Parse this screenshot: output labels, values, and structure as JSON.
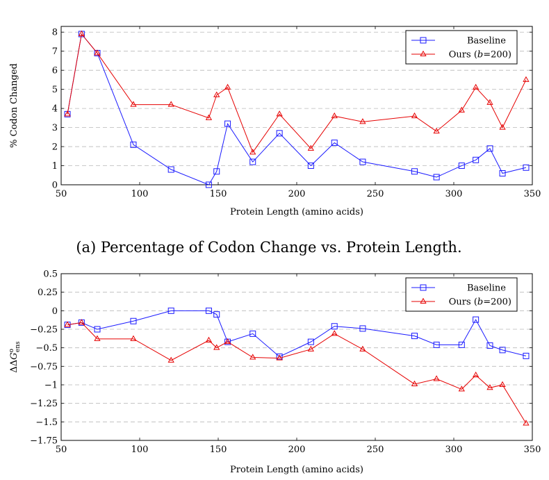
{
  "colors": {
    "baseline": "#1a1aff",
    "ours": "#e60000",
    "grid": "#b8b8b8"
  },
  "caption": "(a) Percentage of Codon Change vs. Protein Length.",
  "chart_data": [
    {
      "type": "line",
      "title": "",
      "xlabel": "Protein Length (amino acids)",
      "ylabel": "% Codon Changed",
      "xlim": [
        50,
        350
      ],
      "ylim": [
        0,
        8.3
      ],
      "xticks": [
        50,
        100,
        150,
        200,
        250,
        300,
        350
      ],
      "xtick_labels": [
        "50",
        "100",
        "150",
        "200",
        "250",
        "300",
        "350"
      ],
      "yticks": [
        0,
        1,
        2,
        3,
        4,
        5,
        6,
        7,
        8
      ],
      "ytick_labels": [
        "0",
        "1",
        "2",
        "3",
        "4",
        "5",
        "6",
        "7",
        "8"
      ],
      "grid": "horizontal dashed",
      "legend_position": "top-right",
      "series": [
        {
          "name": "Baseline",
          "marker": "square",
          "color": "#1a1aff",
          "x": [
            54,
            63,
            73,
            96,
            120,
            144,
            149,
            156,
            172,
            189,
            209,
            224,
            242,
            275,
            289,
            305,
            314,
            323,
            331,
            346
          ],
          "y": [
            3.7,
            7.9,
            6.9,
            2.1,
            0.8,
            0.0,
            0.7,
            3.2,
            1.2,
            2.7,
            1.0,
            2.2,
            1.2,
            0.7,
            0.4,
            1.0,
            1.3,
            1.9,
            0.6,
            0.9
          ]
        },
        {
          "name": "Ours (b=200)",
          "name_prefix": "Ours (",
          "name_var": "b",
          "name_suffix": "=200)",
          "marker": "triangle",
          "color": "#e60000",
          "x": [
            54,
            63,
            73,
            96,
            120,
            144,
            149,
            156,
            172,
            189,
            209,
            224,
            242,
            275,
            289,
            305,
            314,
            323,
            331,
            346
          ],
          "y": [
            3.7,
            7.9,
            6.9,
            4.2,
            4.2,
            3.5,
            4.7,
            5.1,
            1.7,
            3.7,
            1.9,
            3.6,
            3.3,
            3.6,
            2.8,
            3.9,
            5.1,
            4.3,
            3.0,
            5.5
          ]
        }
      ]
    },
    {
      "type": "line",
      "title": "",
      "xlabel": "Protein Length (amino acids)",
      "ylabel_parts": {
        "delta": "ΔΔ",
        "var": "G",
        "sup": "o",
        "sub": "ens"
      },
      "xlim": [
        50,
        350
      ],
      "ylim": [
        -1.75,
        0.5
      ],
      "xticks": [
        50,
        100,
        150,
        200,
        250,
        300,
        350
      ],
      "xtick_labels": [
        "50",
        "100",
        "150",
        "200",
        "250",
        "300",
        "350"
      ],
      "yticks": [
        0.5,
        0.25,
        0,
        -0.25,
        -0.5,
        -0.75,
        -1,
        -1.25,
        -1.5,
        -1.75
      ],
      "ytick_labels": [
        "0.5",
        "0.25",
        "0",
        "−0.25",
        "−0.5",
        "−0.75",
        "−1",
        "−1.25",
        "−1.5",
        "−1.75"
      ],
      "grid": "horizontal dashed",
      "legend_position": "top-right",
      "series": [
        {
          "name": "Baseline",
          "marker": "square",
          "color": "#1a1aff",
          "x": [
            54,
            63,
            73,
            96,
            120,
            144,
            149,
            156,
            172,
            189,
            209,
            224,
            242,
            275,
            289,
            305,
            314,
            323,
            331,
            346
          ],
          "y": [
            -0.19,
            -0.16,
            -0.25,
            -0.14,
            0.0,
            0.0,
            -0.05,
            -0.42,
            -0.31,
            -0.62,
            -0.42,
            -0.21,
            -0.24,
            -0.34,
            -0.46,
            -0.46,
            -0.12,
            -0.47,
            -0.53,
            -0.61
          ]
        },
        {
          "name": "Ours (b=200)",
          "name_prefix": "Ours (",
          "name_var": "b",
          "name_suffix": "=200)",
          "marker": "triangle",
          "color": "#e60000",
          "x": [
            54,
            63,
            73,
            96,
            120,
            144,
            149,
            156,
            172,
            189,
            209,
            224,
            242,
            275,
            289,
            305,
            314,
            323,
            331,
            346
          ],
          "y": [
            -0.19,
            -0.16,
            -0.38,
            -0.38,
            -0.67,
            -0.4,
            -0.5,
            -0.42,
            -0.63,
            -0.64,
            -0.52,
            -0.31,
            -0.52,
            -0.99,
            -0.92,
            -1.06,
            -0.87,
            -1.04,
            -1.0,
            -1.52
          ]
        }
      ]
    }
  ]
}
